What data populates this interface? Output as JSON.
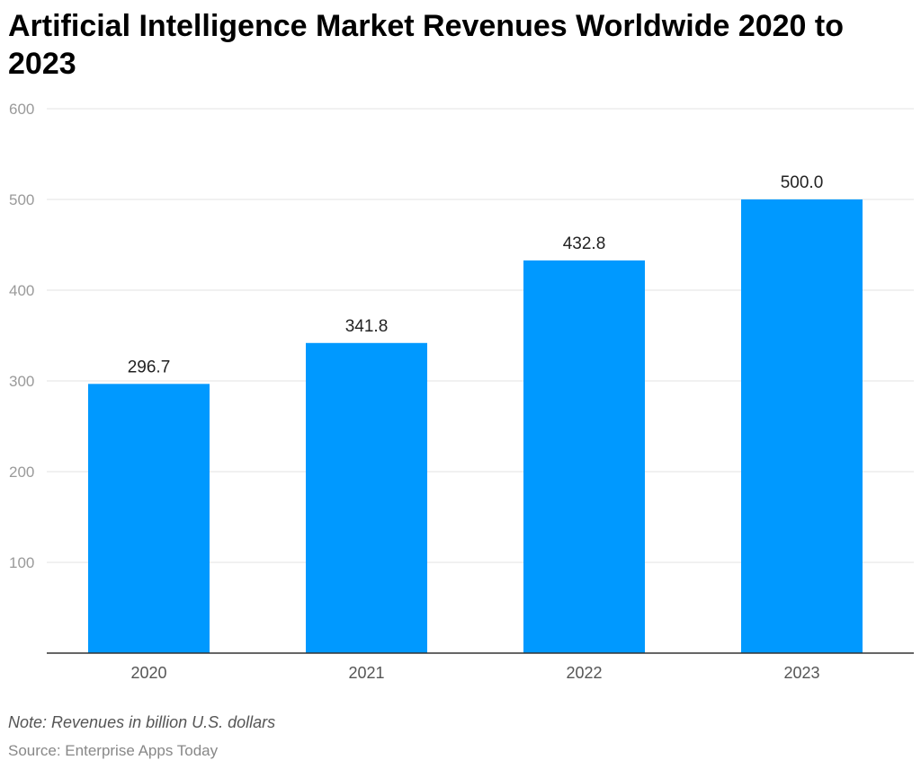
{
  "chart_data": {
    "type": "bar",
    "title": "Artificial Intelligence Market Revenues Worldwide 2020 to 2023",
    "categories": [
      "2020",
      "2021",
      "2022",
      "2023"
    ],
    "values": [
      296.7,
      341.8,
      432.8,
      500.0
    ],
    "value_labels": [
      "296.7",
      "341.8",
      "432.8",
      "500.0"
    ],
    "xlabel": "",
    "ylabel": "",
    "ylim": [
      0,
      600
    ],
    "yticks": [
      100,
      200,
      300,
      400,
      500,
      600
    ],
    "grid": true,
    "bar_color": "#0099ff",
    "note": "Note: Revenues in billion U.S. dollars",
    "source": "Source: Enterprise Apps Today"
  }
}
